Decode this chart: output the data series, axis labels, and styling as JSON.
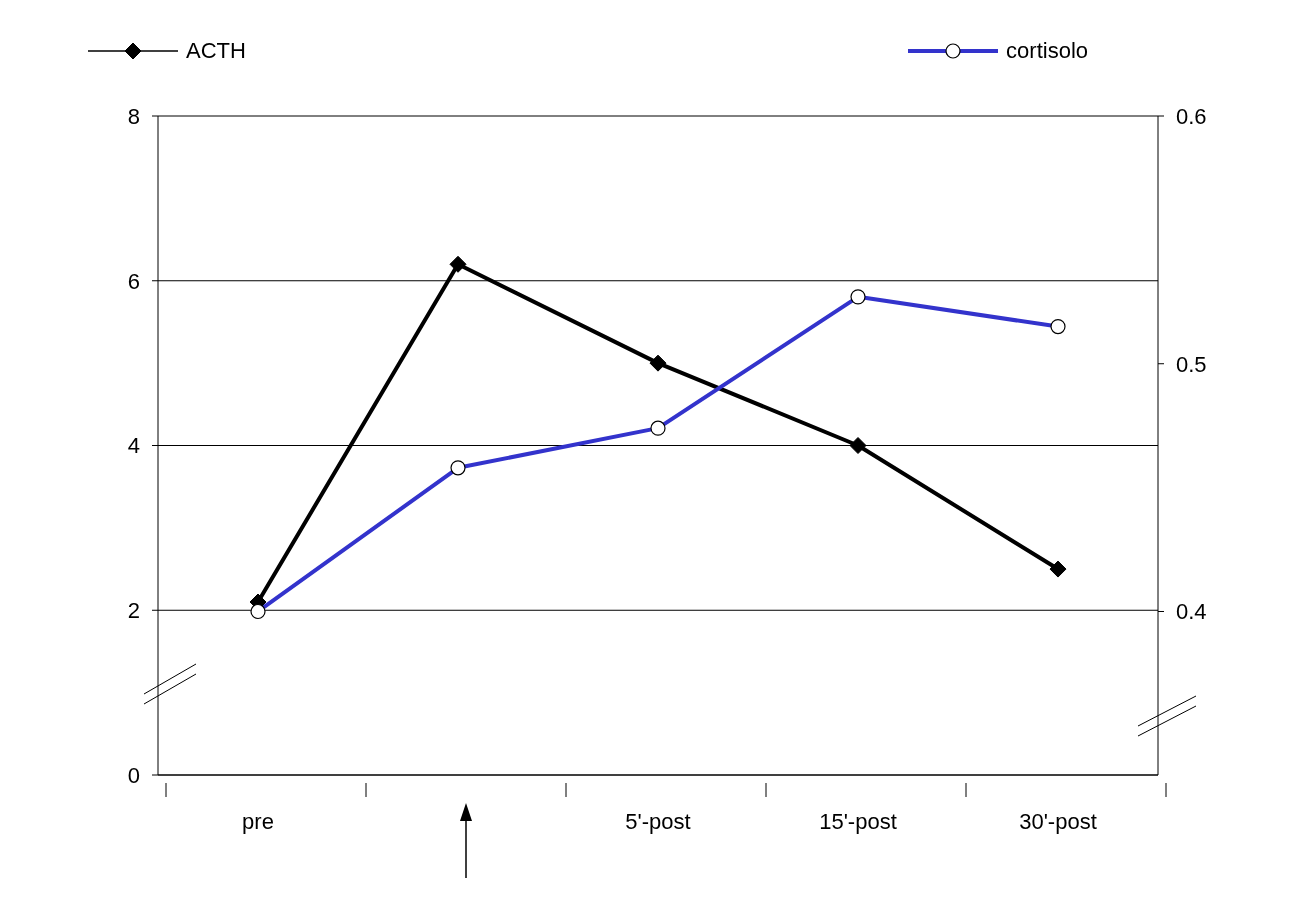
{
  "chart_data": {
    "type": "line",
    "categories": [
      "pre",
      null,
      "5'-post",
      "15'-post",
      "30'-post"
    ],
    "series": [
      {
        "name": "ACTH",
        "color": "#000000",
        "marker": "diamond",
        "values": [
          2.1,
          6.2,
          5.0,
          4.0,
          2.5
        ]
      },
      {
        "name": "cortisolo",
        "color": "#3333cc",
        "marker": "circle",
        "axis": "y2",
        "values": [
          0.4,
          0.458,
          0.474,
          0.527,
          0.515
        ]
      }
    ],
    "ylim": [
      0,
      8
    ],
    "yticks": [
      0,
      2,
      4,
      6,
      8
    ],
    "y2lim": [
      0.334,
      0.6
    ],
    "y2ticks": [
      0.4,
      0.5,
      0.6
    ],
    "grid": "y",
    "legend": "top",
    "line_style": "solid"
  }
}
